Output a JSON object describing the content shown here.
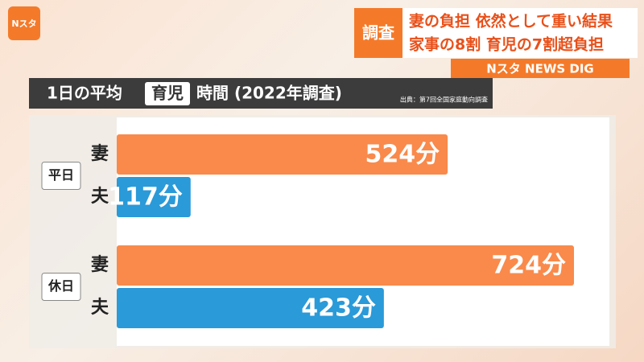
{
  "logo": "Nスタ",
  "header": {
    "tag": "調査",
    "line1": "妻の負担 依然として重い結果",
    "line2": "家事の8割 育児の7割超負担",
    "program": "Nスタ NEWS DIG"
  },
  "chart_data": {
    "type": "bar",
    "orientation": "horizontal",
    "title": {
      "before": "1日の平均",
      "highlight": "育児",
      "after": "時間 (2022年調査)"
    },
    "source": "出典：第7回全国家庭動向調査",
    "categories": [
      "平日",
      "休日"
    ],
    "series": [
      {
        "name": "妻",
        "color": "#f98a4b",
        "values": [
          524,
          724
        ],
        "value_labels": [
          "524分",
          "724分"
        ]
      },
      {
        "name": "夫",
        "color": "#2a9ad8",
        "values": [
          117,
          423
        ],
        "value_labels": [
          "117分",
          "423分"
        ]
      }
    ]
  }
}
